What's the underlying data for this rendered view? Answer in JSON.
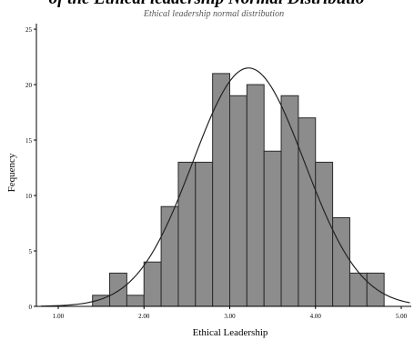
{
  "heading_fragment": "of the Ethical leadership Normal Distributio",
  "chart_data": {
    "type": "bar",
    "title": "Ethical leadership normal distribution",
    "xlabel": "Ethical Leadership",
    "ylabel": "Fequency",
    "xlim": [
      0.8,
      5.1
    ],
    "ylim": [
      0,
      25.5
    ],
    "xticks": [
      "1.00",
      "2.00",
      "3.00",
      "4.00",
      "5.00"
    ],
    "yticks": [
      "0",
      "5",
      "10",
      "15",
      "20",
      "25"
    ],
    "bin_width": 0.2,
    "bins": [
      {
        "x0": 1.4,
        "x1": 1.6,
        "value": 1
      },
      {
        "x0": 1.6,
        "x1": 1.8,
        "value": 3
      },
      {
        "x0": 1.8,
        "x1": 2.0,
        "value": 1
      },
      {
        "x0": 2.0,
        "x1": 2.2,
        "value": 4
      },
      {
        "x0": 2.2,
        "x1": 2.4,
        "value": 9
      },
      {
        "x0": 2.4,
        "x1": 2.6,
        "value": 13
      },
      {
        "x0": 2.6,
        "x1": 2.8,
        "value": 13
      },
      {
        "x0": 2.8,
        "x1": 3.0,
        "value": 21
      },
      {
        "x0": 3.0,
        "x1": 3.2,
        "value": 19
      },
      {
        "x0": 3.2,
        "x1": 3.4,
        "value": 20
      },
      {
        "x0": 3.4,
        "x1": 3.6,
        "value": 14
      },
      {
        "x0": 3.6,
        "x1": 3.8,
        "value": 19
      },
      {
        "x0": 3.8,
        "x1": 4.0,
        "value": 17
      },
      {
        "x0": 4.0,
        "x1": 4.2,
        "value": 13
      },
      {
        "x0": 4.2,
        "x1": 4.4,
        "value": 8
      },
      {
        "x0": 4.4,
        "x1": 4.6,
        "value": 3
      },
      {
        "x0": 4.6,
        "x1": 4.8,
        "value": 3
      }
    ],
    "normal_curve": {
      "mean": 3.22,
      "sd": 0.65,
      "peak": 21.5
    },
    "bar_color": "#8c8c8c",
    "bar_edge_color": "#2a2a2a",
    "grid": false,
    "legend": "none"
  }
}
